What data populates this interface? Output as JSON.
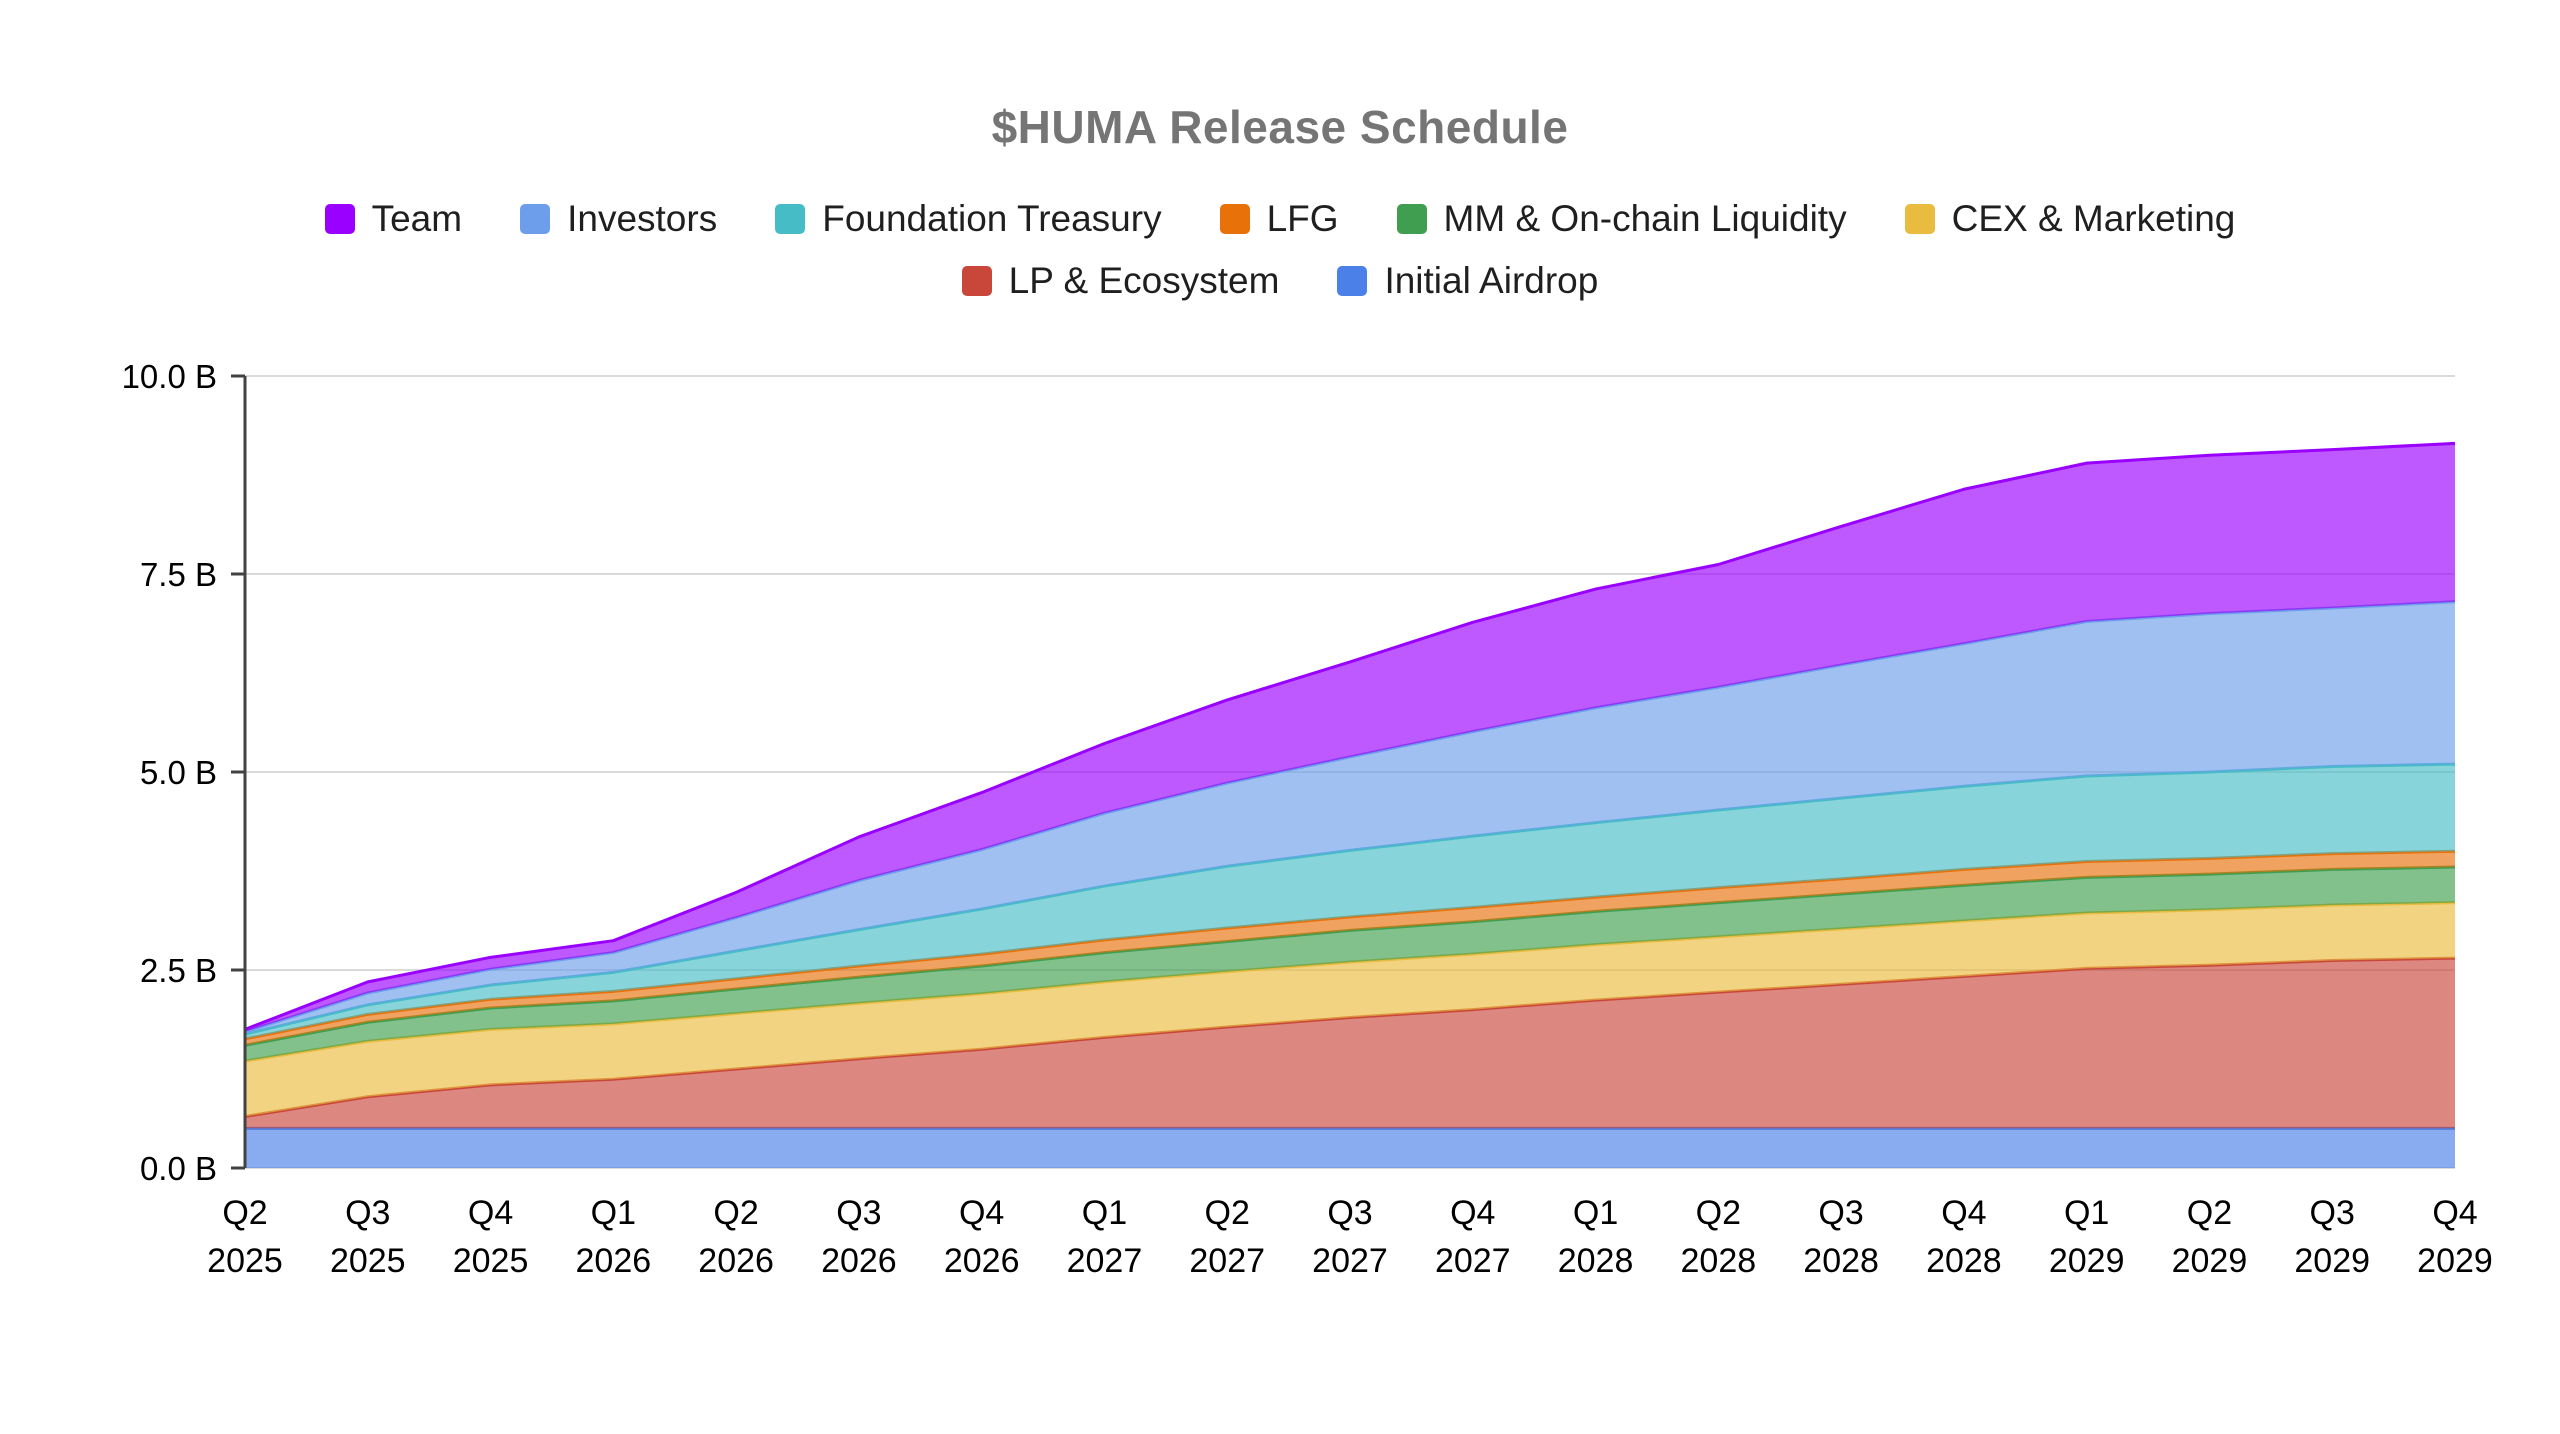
{
  "title": "$HUMA Release Schedule",
  "legend": {
    "rows": [
      [
        {
          "id": "team",
          "label": "Team",
          "color": "#9900ff"
        },
        {
          "id": "investors",
          "label": "Investors",
          "color": "#6d9eeb"
        },
        {
          "id": "foundation-treasury",
          "label": "Foundation Treasury",
          "color": "#46bdc6"
        },
        {
          "id": "lfg",
          "label": "LFG",
          "color": "#e8710a"
        },
        {
          "id": "mm-onchain-liquidity",
          "label": "MM & On-chain Liquidity",
          "color": "#3f9e4f"
        },
        {
          "id": "cex-marketing",
          "label": "CEX & Marketing",
          "color": "#e9bc3f"
        }
      ],
      [
        {
          "id": "lp-ecosystem",
          "label": "LP & Ecosystem",
          "color": "#c9473a"
        },
        {
          "id": "initial-airdrop",
          "label": "Initial Airdrop",
          "color": "#4a80e8"
        }
      ]
    ]
  },
  "chart_data": {
    "type": "area",
    "stacked": true,
    "title": "$HUMA Release Schedule",
    "xlabel": "",
    "ylabel": "",
    "ylim": [
      0,
      10
    ],
    "grid": true,
    "legend_position": "top",
    "series_order": "bottom-to-top",
    "unit": "B (billions of tokens)",
    "categories": [
      "Q2 2025",
      "Q3 2025",
      "Q4 2025",
      "Q1 2026",
      "Q2 2026",
      "Q3 2026",
      "Q4 2026",
      "Q1 2027",
      "Q2 2027",
      "Q3 2027",
      "Q4 2027",
      "Q1 2028",
      "Q2 2028",
      "Q3 2028",
      "Q4 2028",
      "Q1 2029",
      "Q2 2029",
      "Q3 2029",
      "Q4 2029"
    ],
    "y_ticks": {
      "values": [
        0,
        2.5,
        5,
        7.5,
        10
      ],
      "labels": [
        "0.0 B",
        "2.5 B",
        "5.0 B",
        "7.5 B",
        "10.0 B"
      ]
    },
    "series": [
      {
        "id": "initial-airdrop",
        "name": "Initial Airdrop",
        "color": "#4a80e8",
        "values": [
          0.5,
          0.5,
          0.5,
          0.5,
          0.5,
          0.5,
          0.5,
          0.5,
          0.5,
          0.5,
          0.5,
          0.5,
          0.5,
          0.5,
          0.5,
          0.5,
          0.5,
          0.5,
          0.5
        ]
      },
      {
        "id": "lp-ecosystem",
        "name": "LP & Ecosystem",
        "color": "#c9473a",
        "values": [
          0.15,
          0.4,
          0.55,
          0.62,
          0.75,
          0.88,
          1.0,
          1.15,
          1.28,
          1.4,
          1.5,
          1.62,
          1.72,
          1.82,
          1.92,
          2.02,
          2.06,
          2.12,
          2.15
        ]
      },
      {
        "id": "cex-marketing",
        "name": "CEX & Marketing",
        "color": "#e9bc3f",
        "values": [
          0.7,
          0.7,
          0.7,
          0.7,
          0.7,
          0.7,
          0.7,
          0.7,
          0.7,
          0.7,
          0.7,
          0.7,
          0.7,
          0.7,
          0.7,
          0.7,
          0.7,
          0.7,
          0.7
        ]
      },
      {
        "id": "mm-onchain-liquidity",
        "name": "MM & On-chain Liquidity",
        "color": "#3f9e4f",
        "values": [
          0.2,
          0.24,
          0.27,
          0.29,
          0.31,
          0.33,
          0.35,
          0.37,
          0.38,
          0.4,
          0.41,
          0.42,
          0.43,
          0.44,
          0.45,
          0.45,
          0.45,
          0.45,
          0.45
        ]
      },
      {
        "id": "lfg",
        "name": "LFG",
        "color": "#e8710a",
        "values": [
          0.08,
          0.1,
          0.11,
          0.12,
          0.13,
          0.14,
          0.15,
          0.16,
          0.17,
          0.17,
          0.18,
          0.18,
          0.19,
          0.19,
          0.2,
          0.2,
          0.2,
          0.2,
          0.2
        ]
      },
      {
        "id": "foundation-treasury",
        "name": "Foundation Treasury",
        "color": "#46bdc6",
        "values": [
          0.06,
          0.12,
          0.18,
          0.24,
          0.35,
          0.46,
          0.57,
          0.68,
          0.78,
          0.84,
          0.9,
          0.94,
          0.98,
          1.02,
          1.05,
          1.08,
          1.09,
          1.1,
          1.1
        ]
      },
      {
        "id": "investors",
        "name": "Investors",
        "color": "#6d9eeb",
        "values": [
          0.03,
          0.15,
          0.2,
          0.25,
          0.42,
          0.62,
          0.75,
          0.92,
          1.05,
          1.18,
          1.32,
          1.45,
          1.55,
          1.68,
          1.8,
          1.95,
          2.0,
          2.0,
          2.05
        ]
      },
      {
        "id": "team",
        "name": "Team",
        "color": "#9900ff",
        "values": [
          0.03,
          0.14,
          0.15,
          0.15,
          0.32,
          0.55,
          0.72,
          0.88,
          1.05,
          1.2,
          1.38,
          1.5,
          1.55,
          1.75,
          1.95,
          2.0,
          2.0,
          2.0,
          2.0
        ]
      }
    ]
  }
}
